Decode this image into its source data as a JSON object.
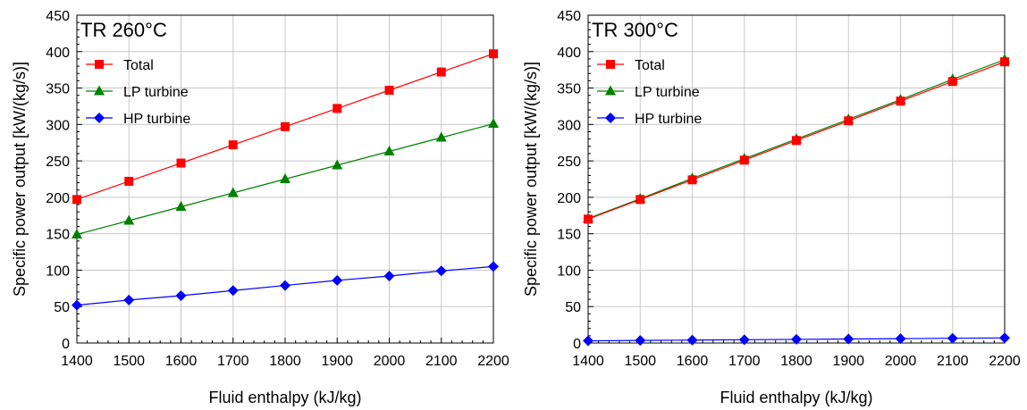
{
  "chart_data": [
    {
      "type": "line",
      "title": "TR 260°C",
      "xlabel": "Fluid enthalpy (kJ/kg)",
      "ylabel": "Specific power output [kW/(kg/s)]",
      "xlim": [
        1400,
        2200
      ],
      "ylim": [
        0,
        450
      ],
      "xticks": [
        "1400",
        "1500",
        "1600",
        "1700",
        "1800",
        "1900",
        "2000",
        "2100",
        "2200"
      ],
      "yticks": [
        "0",
        "50",
        "100",
        "150",
        "200",
        "250",
        "300",
        "350",
        "400",
        "450"
      ],
      "grid": true,
      "legend_position": "top-left",
      "x": [
        1400,
        1500,
        1600,
        1700,
        1800,
        1900,
        2000,
        2100,
        2200
      ],
      "series": [
        {
          "name": "Total",
          "color": "#ff0000",
          "marker": "square",
          "values": [
            197,
            222,
            247,
            272,
            297,
            322,
            347,
            372,
            397
          ]
        },
        {
          "name": "LP turbine",
          "color": "#008000",
          "marker": "triangle",
          "values": [
            149,
            168,
            187,
            206,
            225,
            244,
            263,
            282,
            301
          ]
        },
        {
          "name": "HP turbine",
          "color": "#0000ff",
          "marker": "diamond",
          "values": [
            52,
            59,
            65,
            72,
            79,
            86,
            92,
            99,
            105
          ]
        }
      ]
    },
    {
      "type": "line",
      "title": "TR 300°C",
      "xlabel": "Fluid enthalpy (kJ/kg)",
      "ylabel": "Specific power output [kW/(kg/s)]",
      "xlim": [
        1400,
        2200
      ],
      "ylim": [
        0,
        450
      ],
      "xticks": [
        "1400",
        "1500",
        "1600",
        "1700",
        "1800",
        "1900",
        "2000",
        "2100",
        "2200"
      ],
      "yticks": [
        "0",
        "50",
        "100",
        "150",
        "200",
        "250",
        "300",
        "350",
        "400",
        "450"
      ],
      "grid": true,
      "legend_position": "top-left",
      "x": [
        1400,
        1500,
        1600,
        1700,
        1800,
        1900,
        2000,
        2100,
        2200
      ],
      "series": [
        {
          "name": "Total",
          "color": "#ff0000",
          "marker": "square",
          "values": [
            170,
            197,
            224,
            251,
            278,
            305,
            332,
            359,
            386
          ]
        },
        {
          "name": "LP turbine",
          "color": "#008000",
          "marker": "triangle",
          "values": [
            171,
            198,
            226,
            253,
            280,
            307,
            334,
            362,
            389
          ]
        },
        {
          "name": "HP turbine",
          "color": "#0000ff",
          "marker": "diamond",
          "values": [
            3,
            3.5,
            4,
            4.5,
            5,
            5.5,
            6,
            6.5,
            7
          ]
        }
      ]
    }
  ]
}
